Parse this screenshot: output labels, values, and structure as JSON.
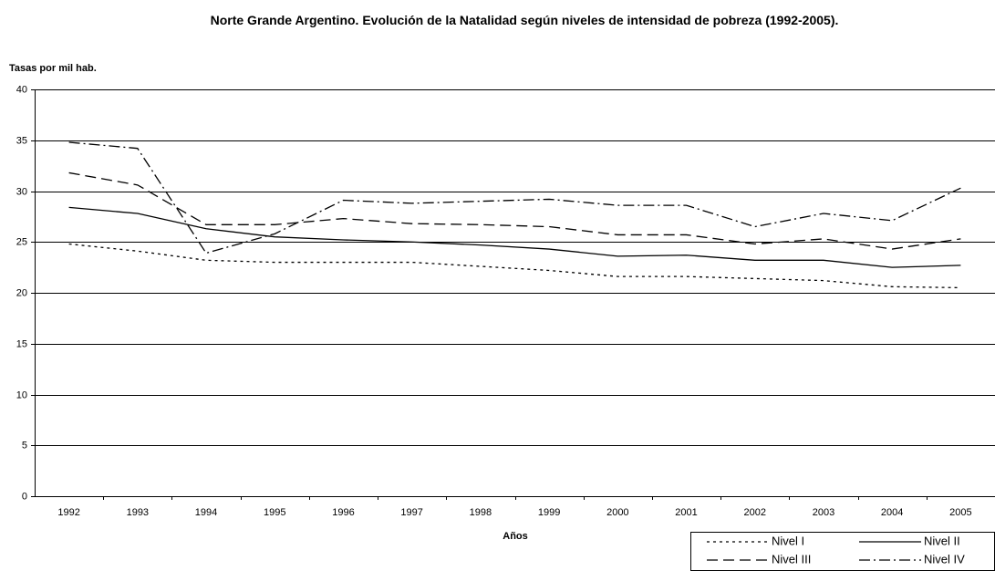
{
  "chart_data": {
    "type": "line",
    "title": "Norte Grande Argentino. Evolución de la Natalidad según niveles de intensidad de pobreza (1992-2005).",
    "y_label": "Tasas por mil hab.",
    "x_label": "Años",
    "categories": [
      "1992",
      "1993",
      "1994",
      "1995",
      "1996",
      "1997",
      "1998",
      "1999",
      "2000",
      "2001",
      "2002",
      "2003",
      "2004",
      "2005"
    ],
    "series": [
      {
        "name": "Nivel I",
        "color": "#000000",
        "dash": "3,4",
        "values": [
          24.8,
          24.1,
          23.2,
          23.0,
          23.0,
          23.0,
          22.6,
          22.2,
          21.6,
          21.6,
          21.4,
          21.2,
          20.6,
          20.5
        ]
      },
      {
        "name": "Nivel II",
        "color": "#000000",
        "dash": "none",
        "values": [
          28.4,
          27.8,
          26.3,
          25.5,
          25.2,
          25.0,
          24.7,
          24.3,
          23.6,
          23.7,
          23.2,
          23.2,
          22.5,
          22.7
        ]
      },
      {
        "name": "Nivel III",
        "color": "#000000",
        "dash": "12,6",
        "values": [
          31.8,
          30.6,
          26.7,
          26.7,
          27.3,
          26.8,
          26.7,
          26.5,
          25.7,
          25.7,
          24.8,
          25.3,
          24.3,
          25.3
        ]
      },
      {
        "name": "Nivel IV",
        "color": "#000000",
        "dash": "12,4,2,4",
        "values": [
          34.8,
          34.2,
          23.9,
          25.8,
          29.1,
          28.8,
          29.0,
          29.2,
          28.6,
          28.6,
          26.5,
          27.8,
          27.1,
          30.3
        ]
      }
    ],
    "ylim": [
      0,
      40
    ],
    "yticks": [
      0,
      5,
      10,
      15,
      20,
      25,
      30,
      35,
      40
    ],
    "grid": true
  }
}
